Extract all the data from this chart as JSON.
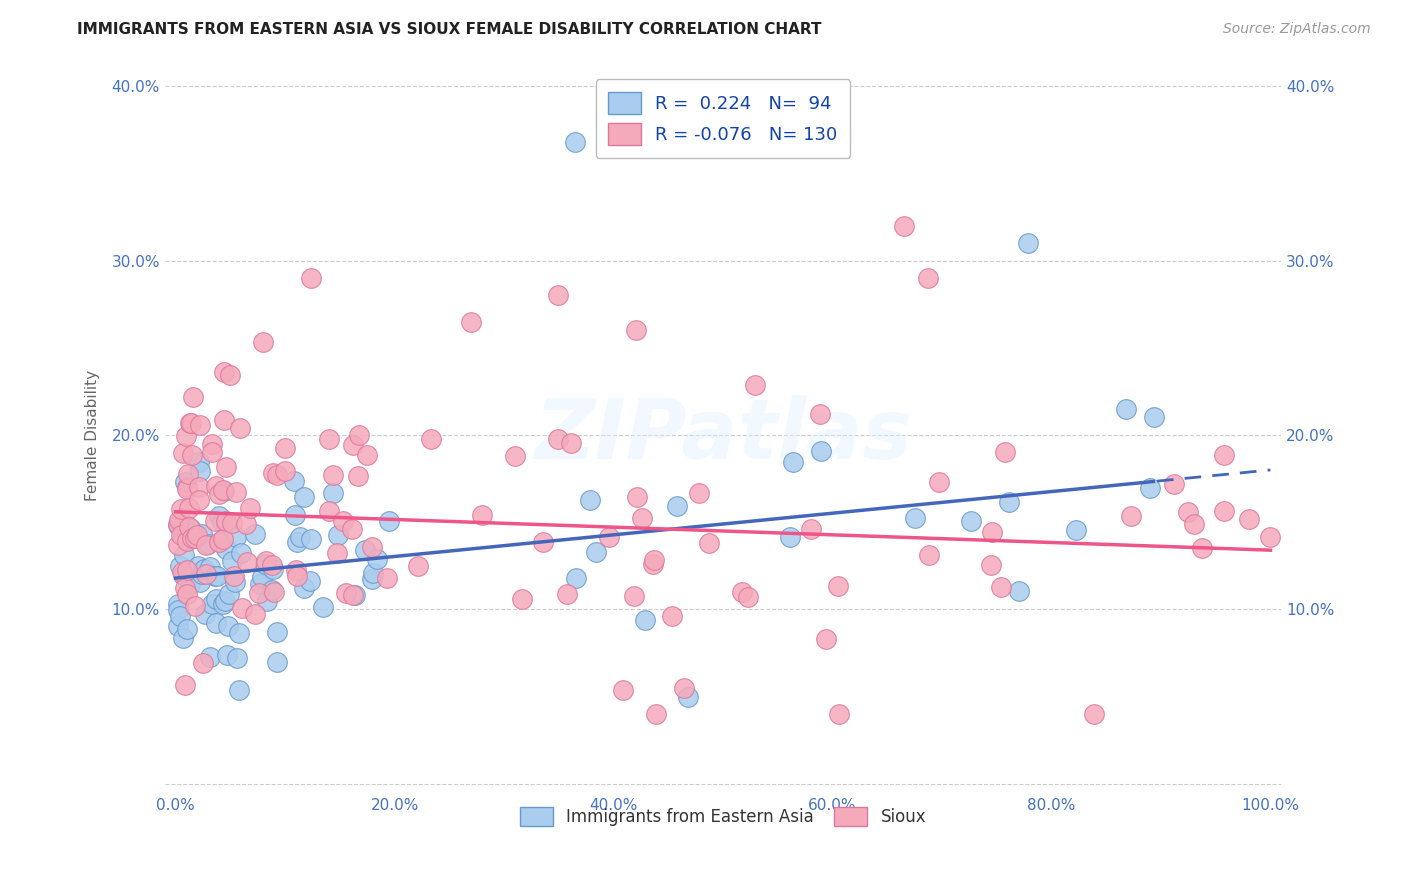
{
  "title": "IMMIGRANTS FROM EASTERN ASIA VS SIOUX FEMALE DISABILITY CORRELATION CHART",
  "source": "Source: ZipAtlas.com",
  "ylabel": "Female Disability",
  "legend_label1": "Immigrants from Eastern Asia",
  "legend_label2": "Sioux",
  "r1": 0.224,
  "n1": 94,
  "r2": -0.076,
  "n2": 130,
  "color_blue_fill": "#AACCEE",
  "color_blue_edge": "#6699CC",
  "color_pink_fill": "#F5AABB",
  "color_pink_edge": "#DD7799",
  "color_blue_line": "#4466BB",
  "color_pink_line": "#EE5588",
  "color_title": "#222222",
  "color_source": "#999999",
  "color_axis": "#4472C4",
  "background_color": "#FFFFFF",
  "grid_color": "#CCCCCC",
  "watermark_text": "ZIPatlas",
  "blue_intercept": 0.118,
  "blue_slope": 0.062,
  "pink_intercept": 0.156,
  "pink_slope": -0.022
}
